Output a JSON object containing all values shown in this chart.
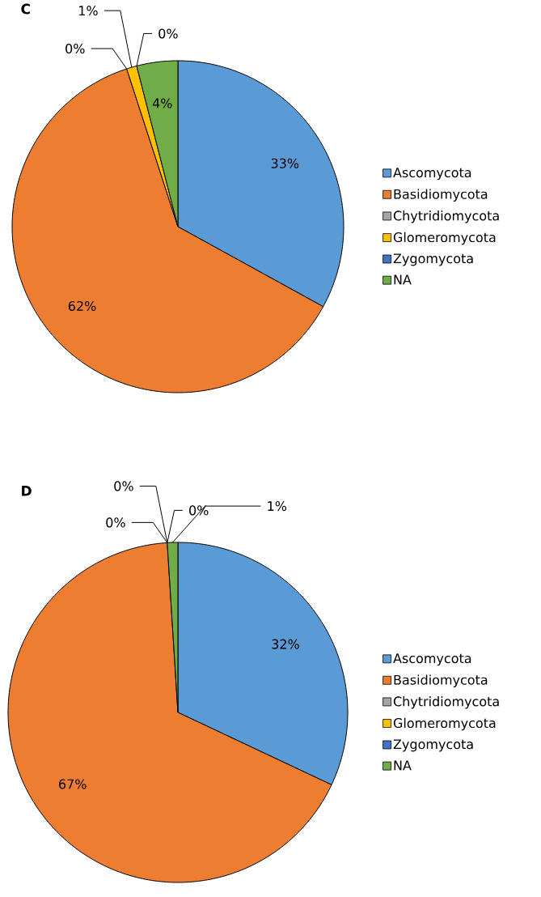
{
  "chart_data": [
    {
      "type": "pie",
      "title": "C",
      "categories": [
        "Ascomycota",
        "Basidiomycota",
        "Chytridiomycota",
        "Glomeromycota",
        "Zygomycota",
        "NA"
      ],
      "values": [
        33,
        62,
        0,
        1,
        0,
        4
      ],
      "value_labels": [
        "33%",
        "62%",
        "0%",
        "1%",
        "0%",
        "4%"
      ],
      "colors": [
        "#5b9bd5",
        "#ed7d31",
        "#a5a5a5",
        "#ffc000",
        "#4472c4",
        "#70ad47"
      ],
      "legend": "right"
    },
    {
      "type": "pie",
      "title": "D",
      "categories": [
        "Ascomycota",
        "Basidiomycota",
        "Chytridiomycota",
        "Glomeromycota",
        "Zygomycota",
        "NA"
      ],
      "values": [
        32,
        67,
        0,
        0,
        0,
        1
      ],
      "value_labels": [
        "32%",
        "67%",
        "0%",
        "0%",
        "0%",
        "1%"
      ],
      "colors": [
        "#5b9bd5",
        "#ed7d31",
        "#a5a5a5",
        "#ffc000",
        "#4472c4",
        "#70ad47"
      ],
      "legend": "right"
    }
  ]
}
